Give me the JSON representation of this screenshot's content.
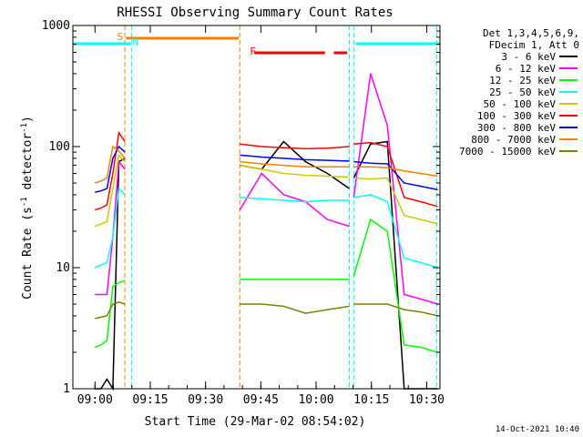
{
  "chart_data": {
    "type": "line",
    "title": "RHESSI Observing Summary Count Rates",
    "xlabel": "Start Time (29-Mar-02 08:54:02)",
    "ylabel_main": "Count Rate (s",
    "ylabel_sup1": "-1",
    "ylabel_mid": " detector",
    "ylabel_sup2": "-1",
    "ylabel_end": ")",
    "yscale": "log",
    "ylim": [
      1,
      1000
    ],
    "xlim_minutes": [
      8.97,
      10.57
    ],
    "x_unit": "UT hours",
    "x_ticks": [
      {
        "value": 9.0,
        "label": "09:00"
      },
      {
        "value": 9.25,
        "label": "09:15"
      },
      {
        "value": 9.5,
        "label": "09:30"
      },
      {
        "value": 9.75,
        "label": "09:45"
      },
      {
        "value": 10.0,
        "label": "10:00"
      },
      {
        "value": 10.25,
        "label": "10:15"
      },
      {
        "value": 10.5,
        "label": "10:30"
      }
    ],
    "y_ticks": [
      {
        "value": 1,
        "label": "1"
      },
      {
        "value": 10,
        "label": "10"
      },
      {
        "value": 100,
        "label": "100"
      },
      {
        "value": 1000,
        "label": "1000"
      }
    ],
    "legend_header": [
      "Det 1,3,4,5,6,9,",
      "FDecim 1, Att 0"
    ],
    "legend_placement": "right",
    "timestamp": "14-Oct-2021 10:40",
    "segments": [
      [
        9.0,
        9.135
      ],
      [
        9.655,
        10.15
      ],
      [
        10.17,
        10.55
      ]
    ],
    "series": [
      {
        "name": "3 - 6 keV",
        "color": "#000000",
        "values": [
          1,
          1,
          1.2,
          1,
          75,
          80,
          70,
          65,
          110,
          75,
          60,
          45,
          55,
          105,
          110,
          1.0,
          1,
          1
        ]
      },
      {
        "name": "6 - 12 keV",
        "color": "#ff00ff",
        "values": [
          6,
          6,
          6,
          18,
          75,
          65,
          30,
          60,
          40,
          35,
          25,
          22,
          38,
          400,
          150,
          6,
          5.5,
          5
        ]
      },
      {
        "name": "12 - 25 keV",
        "color": "#00ff00",
        "values": [
          2.2,
          2.3,
          2.5,
          7,
          7.5,
          7.8,
          8,
          8,
          8,
          8,
          8,
          8,
          8.5,
          25,
          20,
          2.3,
          2.2,
          2
        ]
      },
      {
        "name": "25 - 50 keV",
        "color": "#00ffff",
        "values": [
          10,
          10.5,
          11,
          18,
          45,
          40,
          38,
          37,
          36,
          35,
          36,
          36,
          38,
          40,
          35,
          12,
          11,
          10
        ]
      },
      {
        "name": "50 - 100 keV",
        "color": "#cccc00",
        "values": [
          22,
          23,
          24,
          45,
          85,
          75,
          70,
          65,
          60,
          58,
          57,
          56,
          55,
          54,
          55,
          27,
          25,
          23
        ]
      },
      {
        "name": "100 - 300 keV",
        "color": "#ff0000",
        "values": [
          30,
          31,
          33,
          60,
          130,
          110,
          105,
          100,
          98,
          96,
          97,
          100,
          105,
          108,
          100,
          38,
          35,
          32
        ]
      },
      {
        "name": "300 - 800 keV",
        "color": "#0000ff",
        "values": [
          42,
          43,
          45,
          80,
          100,
          90,
          85,
          82,
          80,
          78,
          77,
          76,
          75,
          73,
          72,
          50,
          47,
          44
        ]
      },
      {
        "name": "800 - 7000 keV",
        "color": "#ff8000",
        "values": [
          50,
          52,
          55,
          100,
          92,
          80,
          75,
          72,
          70,
          68,
          68,
          68,
          68,
          68,
          67,
          63,
          60,
          57
        ]
      },
      {
        "name": "7000 - 15000 keV",
        "color": "#808000",
        "values": [
          3.8,
          3.9,
          4,
          5,
          5.2,
          5,
          5,
          5,
          4.8,
          4.2,
          4.5,
          4.8,
          5,
          5,
          5,
          4.5,
          4.3,
          4
        ]
      }
    ],
    "annotations": [
      {
        "label": "S",
        "color": "#ff8000"
      },
      {
        "label": "N",
        "color": "#00ffff"
      },
      {
        "label": "F",
        "color": "#ff0000"
      }
    ]
  }
}
